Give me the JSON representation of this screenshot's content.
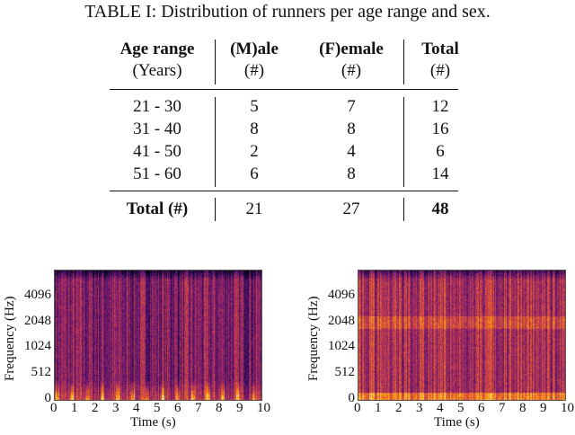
{
  "caption": "TABLE I: Distribution of runners per age range and sex.",
  "table": {
    "headers": [
      [
        "Age range",
        "(Years)"
      ],
      [
        "(M)ale",
        "(#)"
      ],
      [
        "(F)emale",
        "(#)"
      ],
      [
        "Total",
        "(#)"
      ]
    ],
    "rows": [
      [
        "21 - 30",
        "5",
        "7",
        "12"
      ],
      [
        "31 - 40",
        "8",
        "8",
        "16"
      ],
      [
        "41 - 50",
        "2",
        "4",
        "6"
      ],
      [
        "51 - 60",
        "6",
        "8",
        "14"
      ]
    ],
    "total": [
      "Total (#)",
      "21",
      "27",
      "48"
    ]
  },
  "figures": [
    {
      "type": "spectrogram",
      "colormap": "magma",
      "xlabel": "Time (s)",
      "ylabel": "Frequency (Hz)",
      "xticks": [
        "0",
        "1",
        "2",
        "3",
        "4",
        "5",
        "6",
        "7",
        "8",
        "9",
        "10"
      ],
      "yticks": [
        "0",
        "512",
        "1024",
        "2048",
        "4096"
      ]
    },
    {
      "type": "spectrogram",
      "colormap": "magma",
      "xlabel": "Time (s)",
      "ylabel": "Frequency (Hz)",
      "xticks": [
        "0",
        "1",
        "2",
        "3",
        "4",
        "5",
        "6",
        "7",
        "8",
        "9",
        "10"
      ],
      "yticks": [
        "0",
        "512",
        "1024",
        "2048",
        "4096"
      ]
    }
  ]
}
